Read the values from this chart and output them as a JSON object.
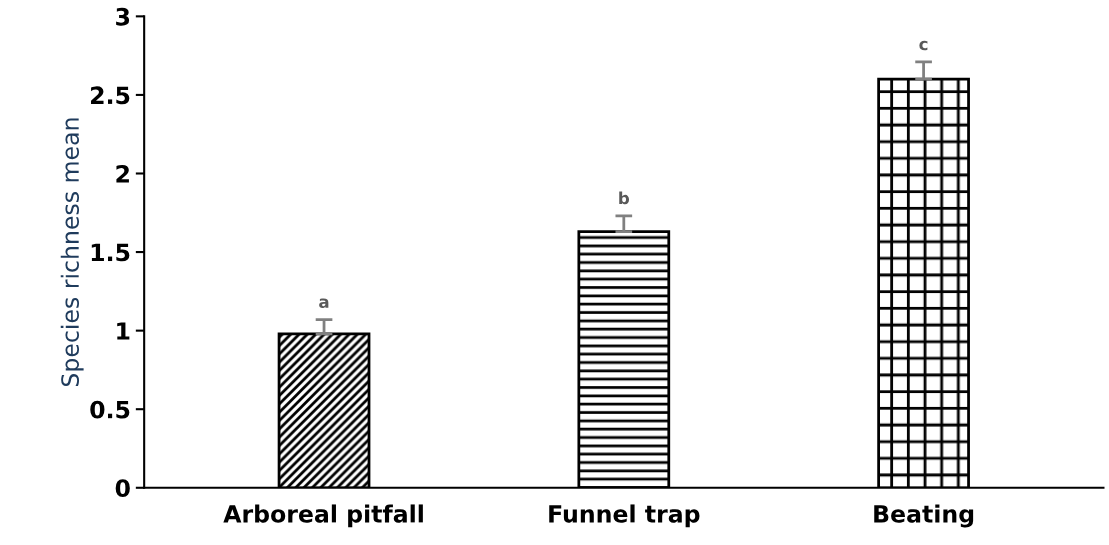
{
  "chart_data": {
    "type": "bar",
    "ylabel": "Species richness mean",
    "categories": [
      "Arboreal pitfall",
      "Funnel trap",
      "Beating"
    ],
    "values": [
      0.98,
      1.63,
      2.6
    ],
    "errors": [
      [
        0.98,
        1.07
      ],
      [
        1.63,
        1.73
      ],
      [
        2.6,
        2.71
      ]
    ],
    "ylim": [
      0,
      3
    ],
    "yticks": [
      0,
      0.5,
      1,
      1.5,
      2,
      2.5,
      3
    ],
    "grid": false,
    "legend": false,
    "annotations": [
      {
        "text": "a",
        "x": "Arboreal pitfall",
        "y": 1.07
      },
      {
        "text": "b",
        "x": "Funnel trap",
        "y": 1.73
      },
      {
        "text": "c",
        "x": "Beating",
        "y": 2.71
      }
    ]
  }
}
